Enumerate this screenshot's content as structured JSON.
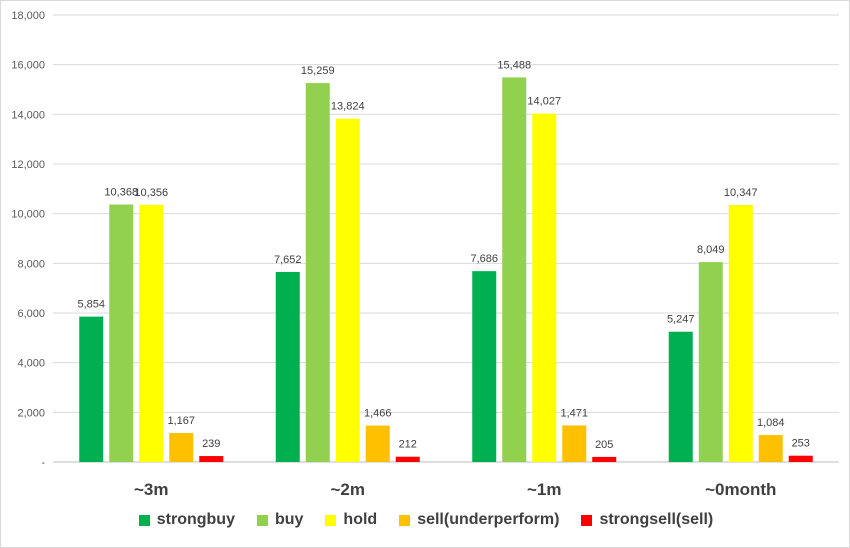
{
  "chart_data": {
    "type": "bar",
    "title": "",
    "xlabel": "",
    "ylabel": "",
    "categories": [
      "~3m",
      "~2m",
      "~1m",
      "~0month"
    ],
    "ylim": [
      0,
      18000
    ],
    "yticks": [
      0,
      2000,
      4000,
      6000,
      8000,
      10000,
      12000,
      14000,
      16000,
      18000
    ],
    "ytick_labels": [
      "-",
      "2,000",
      "4,000",
      "6,000",
      "8,000",
      "10,000",
      "12,000",
      "14,000",
      "16,000",
      "18,000"
    ],
    "grid": true,
    "legend_position": "bottom",
    "series": [
      {
        "name": "strongbuy",
        "color": "#00b050",
        "values": [
          5854,
          7652,
          7686,
          5247
        ],
        "labels": [
          "5,854",
          "7,652",
          "7,686",
          "5,247"
        ]
      },
      {
        "name": "buy",
        "color": "#92d050",
        "values": [
          10368,
          15259,
          15488,
          8049
        ],
        "labels": [
          "10,368",
          "15,259",
          "15,488",
          "8,049"
        ]
      },
      {
        "name": "hold",
        "color": "#ffff00",
        "values": [
          10356,
          13824,
          14027,
          10347
        ],
        "labels": [
          "10,356",
          "13,824",
          "14,027",
          "10,347"
        ]
      },
      {
        "name": "sell(underperform)",
        "color": "#ffc000",
        "values": [
          1167,
          1466,
          1471,
          1084
        ],
        "labels": [
          "1,167",
          "1,466",
          "1,471",
          "1,084"
        ]
      },
      {
        "name": "strongsell(sell)",
        "color": "#ff0000",
        "values": [
          239,
          212,
          205,
          253
        ],
        "labels": [
          "239",
          "212",
          "205",
          "253"
        ]
      }
    ]
  }
}
